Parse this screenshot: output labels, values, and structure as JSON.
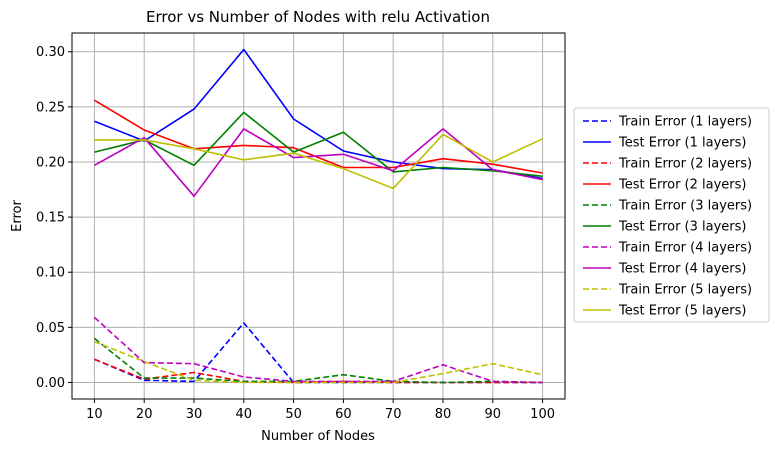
{
  "chart_data": {
    "type": "line",
    "title": "Error vs Number of Nodes with relu Activation",
    "xlabel": "Number of Nodes",
    "ylabel": "Error",
    "x": [
      10,
      20,
      30,
      40,
      50,
      60,
      70,
      80,
      90,
      100
    ],
    "x_tick_labels": [
      "10",
      "20",
      "30",
      "40",
      "50",
      "60",
      "70",
      "80",
      "90",
      "100"
    ],
    "y_ticks": [
      0.0,
      0.05,
      0.1,
      0.15,
      0.2,
      0.25,
      0.3
    ],
    "y_tick_labels": [
      "0.00",
      "0.05",
      "0.10",
      "0.15",
      "0.20",
      "0.25",
      "0.30"
    ],
    "xlim": [
      5.5,
      104.5
    ],
    "ylim": [
      -0.015,
      0.317
    ],
    "grid": true,
    "legend_position": "outside-right",
    "series": [
      {
        "name": "Train Error (1 layers)",
        "color": "#0000ff",
        "dash": true,
        "values": [
          0.021,
          0.002,
          0.001,
          0.054,
          0.0,
          0.0,
          0.0,
          0.0,
          0.0,
          0.0
        ]
      },
      {
        "name": "Test Error (1 layers)",
        "color": "#0000ff",
        "dash": false,
        "values": [
          0.237,
          0.219,
          0.248,
          0.302,
          0.239,
          0.21,
          0.2,
          0.194,
          0.193,
          0.185
        ]
      },
      {
        "name": "Train Error (2 layers)",
        "color": "#ff0000",
        "dash": true,
        "values": [
          0.021,
          0.003,
          0.009,
          0.001,
          0.0,
          0.001,
          0.0,
          0.0,
          0.0,
          0.0
        ]
      },
      {
        "name": "Test Error (2 layers)",
        "color": "#ff0000",
        "dash": false,
        "values": [
          0.256,
          0.229,
          0.212,
          0.215,
          0.213,
          0.195,
          0.195,
          0.203,
          0.198,
          0.19
        ]
      },
      {
        "name": "Train Error (3 layers)",
        "color": "#008000",
        "dash": true,
        "values": [
          0.04,
          0.004,
          0.004,
          0.001,
          0.001,
          0.007,
          0.001,
          0.0,
          0.001,
          0.0
        ]
      },
      {
        "name": "Test Error (3 layers)",
        "color": "#008000",
        "dash": false,
        "values": [
          0.209,
          0.22,
          0.197,
          0.245,
          0.209,
          0.227,
          0.191,
          0.195,
          0.192,
          0.187
        ]
      },
      {
        "name": "Train Error (4 layers)",
        "color": "#bf00bf",
        "dash": true,
        "values": [
          0.059,
          0.018,
          0.017,
          0.005,
          0.001,
          0.001,
          0.001,
          0.016,
          0.001,
          0.0
        ]
      },
      {
        "name": "Test Error (4 layers)",
        "color": "#bf00bf",
        "dash": false,
        "values": [
          0.197,
          0.222,
          0.169,
          0.23,
          0.204,
          0.207,
          0.192,
          0.23,
          0.193,
          0.184
        ]
      },
      {
        "name": "Train Error (5 layers)",
        "color": "#bfbf00",
        "dash": true,
        "values": [
          0.037,
          0.019,
          0.002,
          0.0,
          0.0,
          0.0,
          0.0,
          0.008,
          0.017,
          0.007
        ]
      },
      {
        "name": "Test Error (5 layers)",
        "color": "#bfbf00",
        "dash": false,
        "values": [
          0.22,
          0.22,
          0.212,
          0.202,
          0.208,
          0.194,
          0.176,
          0.225,
          0.2,
          0.221
        ]
      }
    ]
  }
}
